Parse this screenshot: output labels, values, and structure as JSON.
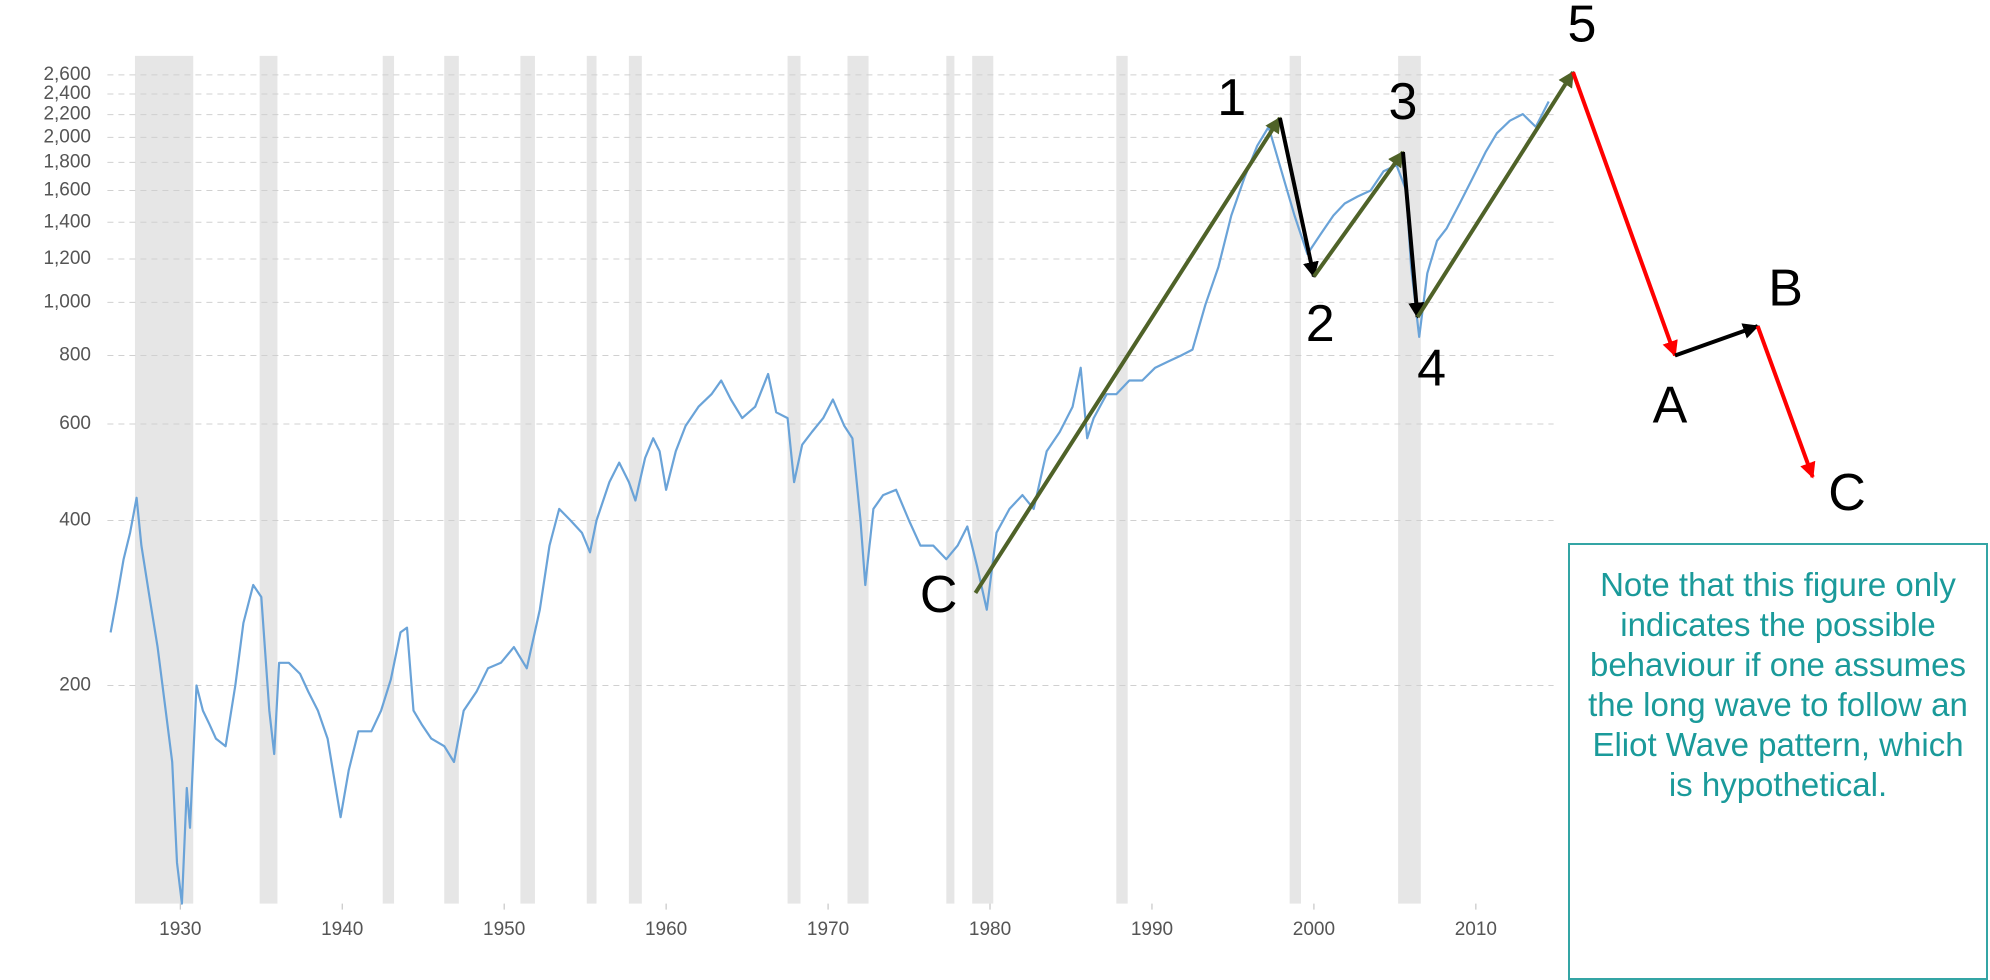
{
  "chart_data": {
    "type": "line",
    "log_y": true,
    "grid": true,
    "color": "#6aa3d8",
    "recession_color": "#e6e6e6",
    "xlim": [
      1925.5,
      2014.8
    ],
    "xticks": [
      1930,
      1940,
      1950,
      1960,
      1970,
      1980,
      1990,
      2000,
      2010
    ],
    "ylim": [
      80,
      2700
    ],
    "yticks": [
      200,
      400,
      600,
      800,
      {
        "value": 1000,
        "label": "1,000"
      },
      {
        "value": 1200,
        "label": "1,200"
      },
      {
        "value": 1400,
        "label": "1,400"
      },
      {
        "value": 1600,
        "label": "1,600"
      },
      {
        "value": 1800,
        "label": "1,800"
      },
      {
        "value": 2000,
        "label": "2,000"
      },
      {
        "value": 2200,
        "label": "2,200"
      },
      {
        "value": 2400,
        "label": "2,400"
      },
      {
        "value": 2600,
        "label": "2,600"
      }
    ],
    "recessions": [
      [
        1927.2,
        1930.8
      ],
      [
        1934.9,
        1936.0
      ],
      [
        1942.5,
        1943.2
      ],
      [
        1946.3,
        1947.2
      ],
      [
        1951.0,
        1951.9
      ],
      [
        1955.1,
        1955.7
      ],
      [
        1957.7,
        1958.5
      ],
      [
        1967.5,
        1968.3
      ],
      [
        1971.2,
        1972.5
      ],
      [
        1977.3,
        1977.8
      ],
      [
        1978.9,
        1980.2
      ],
      [
        1987.8,
        1988.5
      ],
      [
        1998.5,
        1999.2
      ],
      [
        2005.2,
        2006.6
      ]
    ],
    "x": [
      1925.7,
      1926.1,
      1926.5,
      1926.9,
      1927.3,
      1927.6,
      1928.1,
      1928.6,
      1929.1,
      1929.5,
      1929.8,
      1930.1,
      1930.4,
      1930.6,
      1931.0,
      1931.4,
      1931.8,
      1932.2,
      1932.8,
      1933.4,
      1933.9,
      1934.5,
      1935.0,
      1935.5,
      1935.8,
      1936.1,
      1936.7,
      1937.4,
      1937.9,
      1938.5,
      1939.1,
      1939.9,
      1940.4,
      1941.0,
      1941.8,
      1942.4,
      1943.0,
      1943.6,
      1944.0,
      1944.4,
      1944.9,
      1945.5,
      1946.3,
      1946.9,
      1947.5,
      1948.3,
      1949.0,
      1949.8,
      1950.6,
      1951.4,
      1952.2,
      1952.8,
      1953.4,
      1954.1,
      1954.8,
      1955.3,
      1955.7,
      1956.5,
      1957.1,
      1957.7,
      1958.1,
      1958.7,
      1959.2,
      1959.6,
      1960.0,
      1960.6,
      1961.2,
      1962.0,
      1962.8,
      1963.4,
      1964.0,
      1964.7,
      1965.5,
      1966.3,
      1966.8,
      1967.5,
      1967.9,
      1968.4,
      1969.0,
      1969.7,
      1970.3,
      1971.0,
      1971.5,
      1972.0,
      1972.3,
      1972.8,
      1973.4,
      1974.2,
      1975.0,
      1975.7,
      1976.5,
      1977.3,
      1978.0,
      1978.6,
      1979.2,
      1979.8,
      1980.4,
      1981.2,
      1982.0,
      1982.7,
      1983.5,
      1984.3,
      1985.1,
      1985.6,
      1986.0,
      1986.4,
      1987.2,
      1987.8,
      1988.6,
      1989.4,
      1990.2,
      1991.0,
      1991.8,
      1992.5,
      1993.3,
      1994.1,
      1994.9,
      1995.7,
      1996.5,
      1997.2,
      1998.0,
      1998.8,
      1999.6,
      2000.4,
      2001.2,
      2001.9,
      2002.7,
      2003.5,
      2004.3,
      2005.1,
      2005.7,
      2006.0,
      2006.5,
      2007.0,
      2007.6,
      2008.2,
      2009.0,
      2009.8,
      2010.6,
      2011.3,
      2012.1,
      2012.9,
      2013.7,
      2014.5
    ],
    "values": [
      250,
      290,
      340,
      380,
      440,
      360,
      290,
      235,
      180,
      145,
      95,
      80,
      130,
      110,
      200,
      180,
      170,
      160,
      155,
      200,
      260,
      305,
      290,
      180,
      150,
      220,
      220,
      210,
      195,
      180,
      160,
      115,
      140,
      165,
      165,
      180,
      205,
      250,
      255,
      180,
      170,
      160,
      155,
      145,
      180,
      195,
      215,
      220,
      235,
      215,
      275,
      360,
      420,
      400,
      380,
      350,
      400,
      470,
      510,
      470,
      435,
      520,
      565,
      535,
      455,
      535,
      595,
      645,
      680,
      720,
      665,
      615,
      645,
      740,
      630,
      615,
      470,
      550,
      580,
      615,
      665,
      595,
      565,
      400,
      305,
      420,
      445,
      455,
      400,
      360,
      360,
      340,
      360,
      390,
      330,
      275,
      380,
      420,
      445,
      420,
      535,
      580,
      645,
      760,
      565,
      615,
      680,
      680,
      720,
      720,
      760,
      780,
      800,
      820,
      990,
      1160,
      1440,
      1685,
      1930,
      2090,
      1735,
      1440,
      1225,
      1330,
      1440,
      1515,
      1560,
      1600,
      1735,
      1780,
      1600,
      1160,
      865,
      1130,
      1295,
      1365,
      1515,
      1685,
      1880,
      2035,
      2145,
      2205,
      2090,
      2325
    ],
    "waves": [
      {
        "label": "C",
        "x": 1979.1,
        "y": 295
      },
      {
        "label": "1",
        "x": 1997.9,
        "y": 2170
      },
      {
        "label": "2",
        "x": 2000.0,
        "y": 1115
      },
      {
        "label": "3",
        "x": 2005.5,
        "y": 1880
      },
      {
        "label": "4",
        "x": 2006.4,
        "y": 940
      },
      {
        "label": "5",
        "x": 2016.0,
        "y": 2630
      },
      {
        "label": "A",
        "x": 2022.3,
        "y": 800
      },
      {
        "label": "B",
        "x": 2027.4,
        "y": 905
      },
      {
        "label": "C",
        "x": 2030.8,
        "y": 480
      }
    ],
    "wave_colors": [
      "#4f6228",
      "#000000",
      "#4f6228",
      "#000000",
      "#4f6228",
      "#ff0000",
      "#000000",
      "#ff0000"
    ],
    "note": "Note that this figure only indicates the possible behaviour if one assumes the long wave to follow an Eliot Wave pattern, which is hypothetical."
  }
}
